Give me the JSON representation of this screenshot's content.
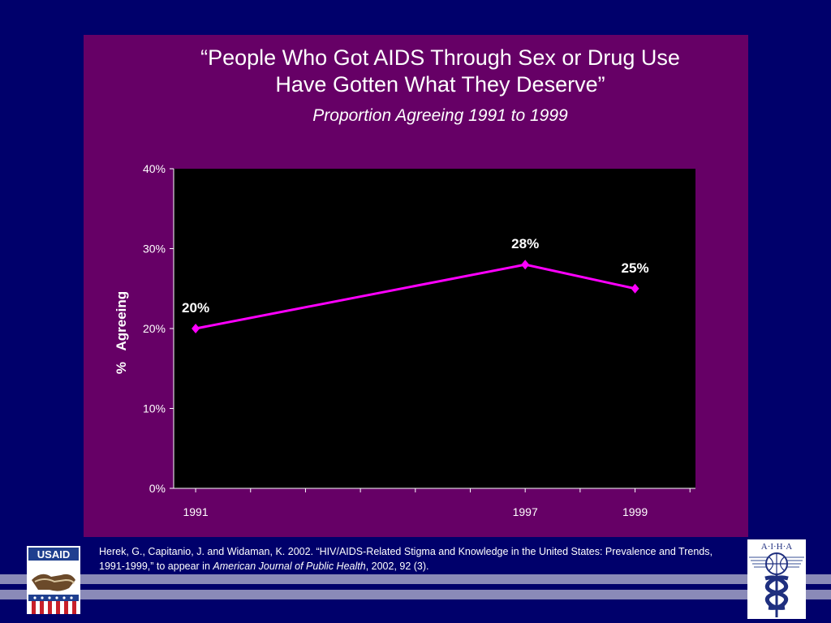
{
  "chart_data": {
    "type": "line",
    "title": "“People Who Got AIDS Through Sex or Drug Use Have Gotten What They Deserve”",
    "title_lines": [
      "“People Who Got AIDS Through Sex or Drug Use",
      "Have Gotten What They Deserve”"
    ],
    "subtitle": "Proportion Agreeing 1991 to 1999",
    "ylabel": "%   Agreeing",
    "xlabel": "",
    "x": [
      1991,
      1997,
      1999
    ],
    "x_tick_labels": [
      "1991",
      "1997",
      "1999"
    ],
    "xlim": [
      1990.6,
      2000.1
    ],
    "y_ticks": [
      0,
      10,
      20,
      30,
      40
    ],
    "y_tick_labels": [
      "0%",
      "10%",
      "20%",
      "30%",
      "40%"
    ],
    "ylim": [
      0,
      40
    ],
    "series": [
      {
        "values": [
          20,
          28,
          25
        ],
        "data_labels": [
          "20%",
          "28%",
          "25%"
        ],
        "color": "#ff00ff"
      }
    ],
    "grid": false,
    "legend": "none",
    "plot_background": "#000000",
    "panel_background": "#660066"
  },
  "citation": {
    "text_before": "Herek, G., Capitanio, J. and Widaman, K. 2002. “HIV/AIDS-Related Stigma and Knowledge in the United States: Prevalence and Trends, 1991-1999,” to appear in ",
    "journal": "American Journal of Public Health",
    "text_after": ", 2002, 92 (3)."
  },
  "logos": {
    "usaid_text": "USAID",
    "aiha_text": "A·I·H·A",
    "left_logo_icon": "usaid-handshake-shield-icon",
    "right_logo_icon": "aiha-globe-caduceus-icon"
  },
  "colors": {
    "slide_background": "#00006b",
    "footer_band": "#8a8ab8",
    "line": "#ff00ff"
  }
}
